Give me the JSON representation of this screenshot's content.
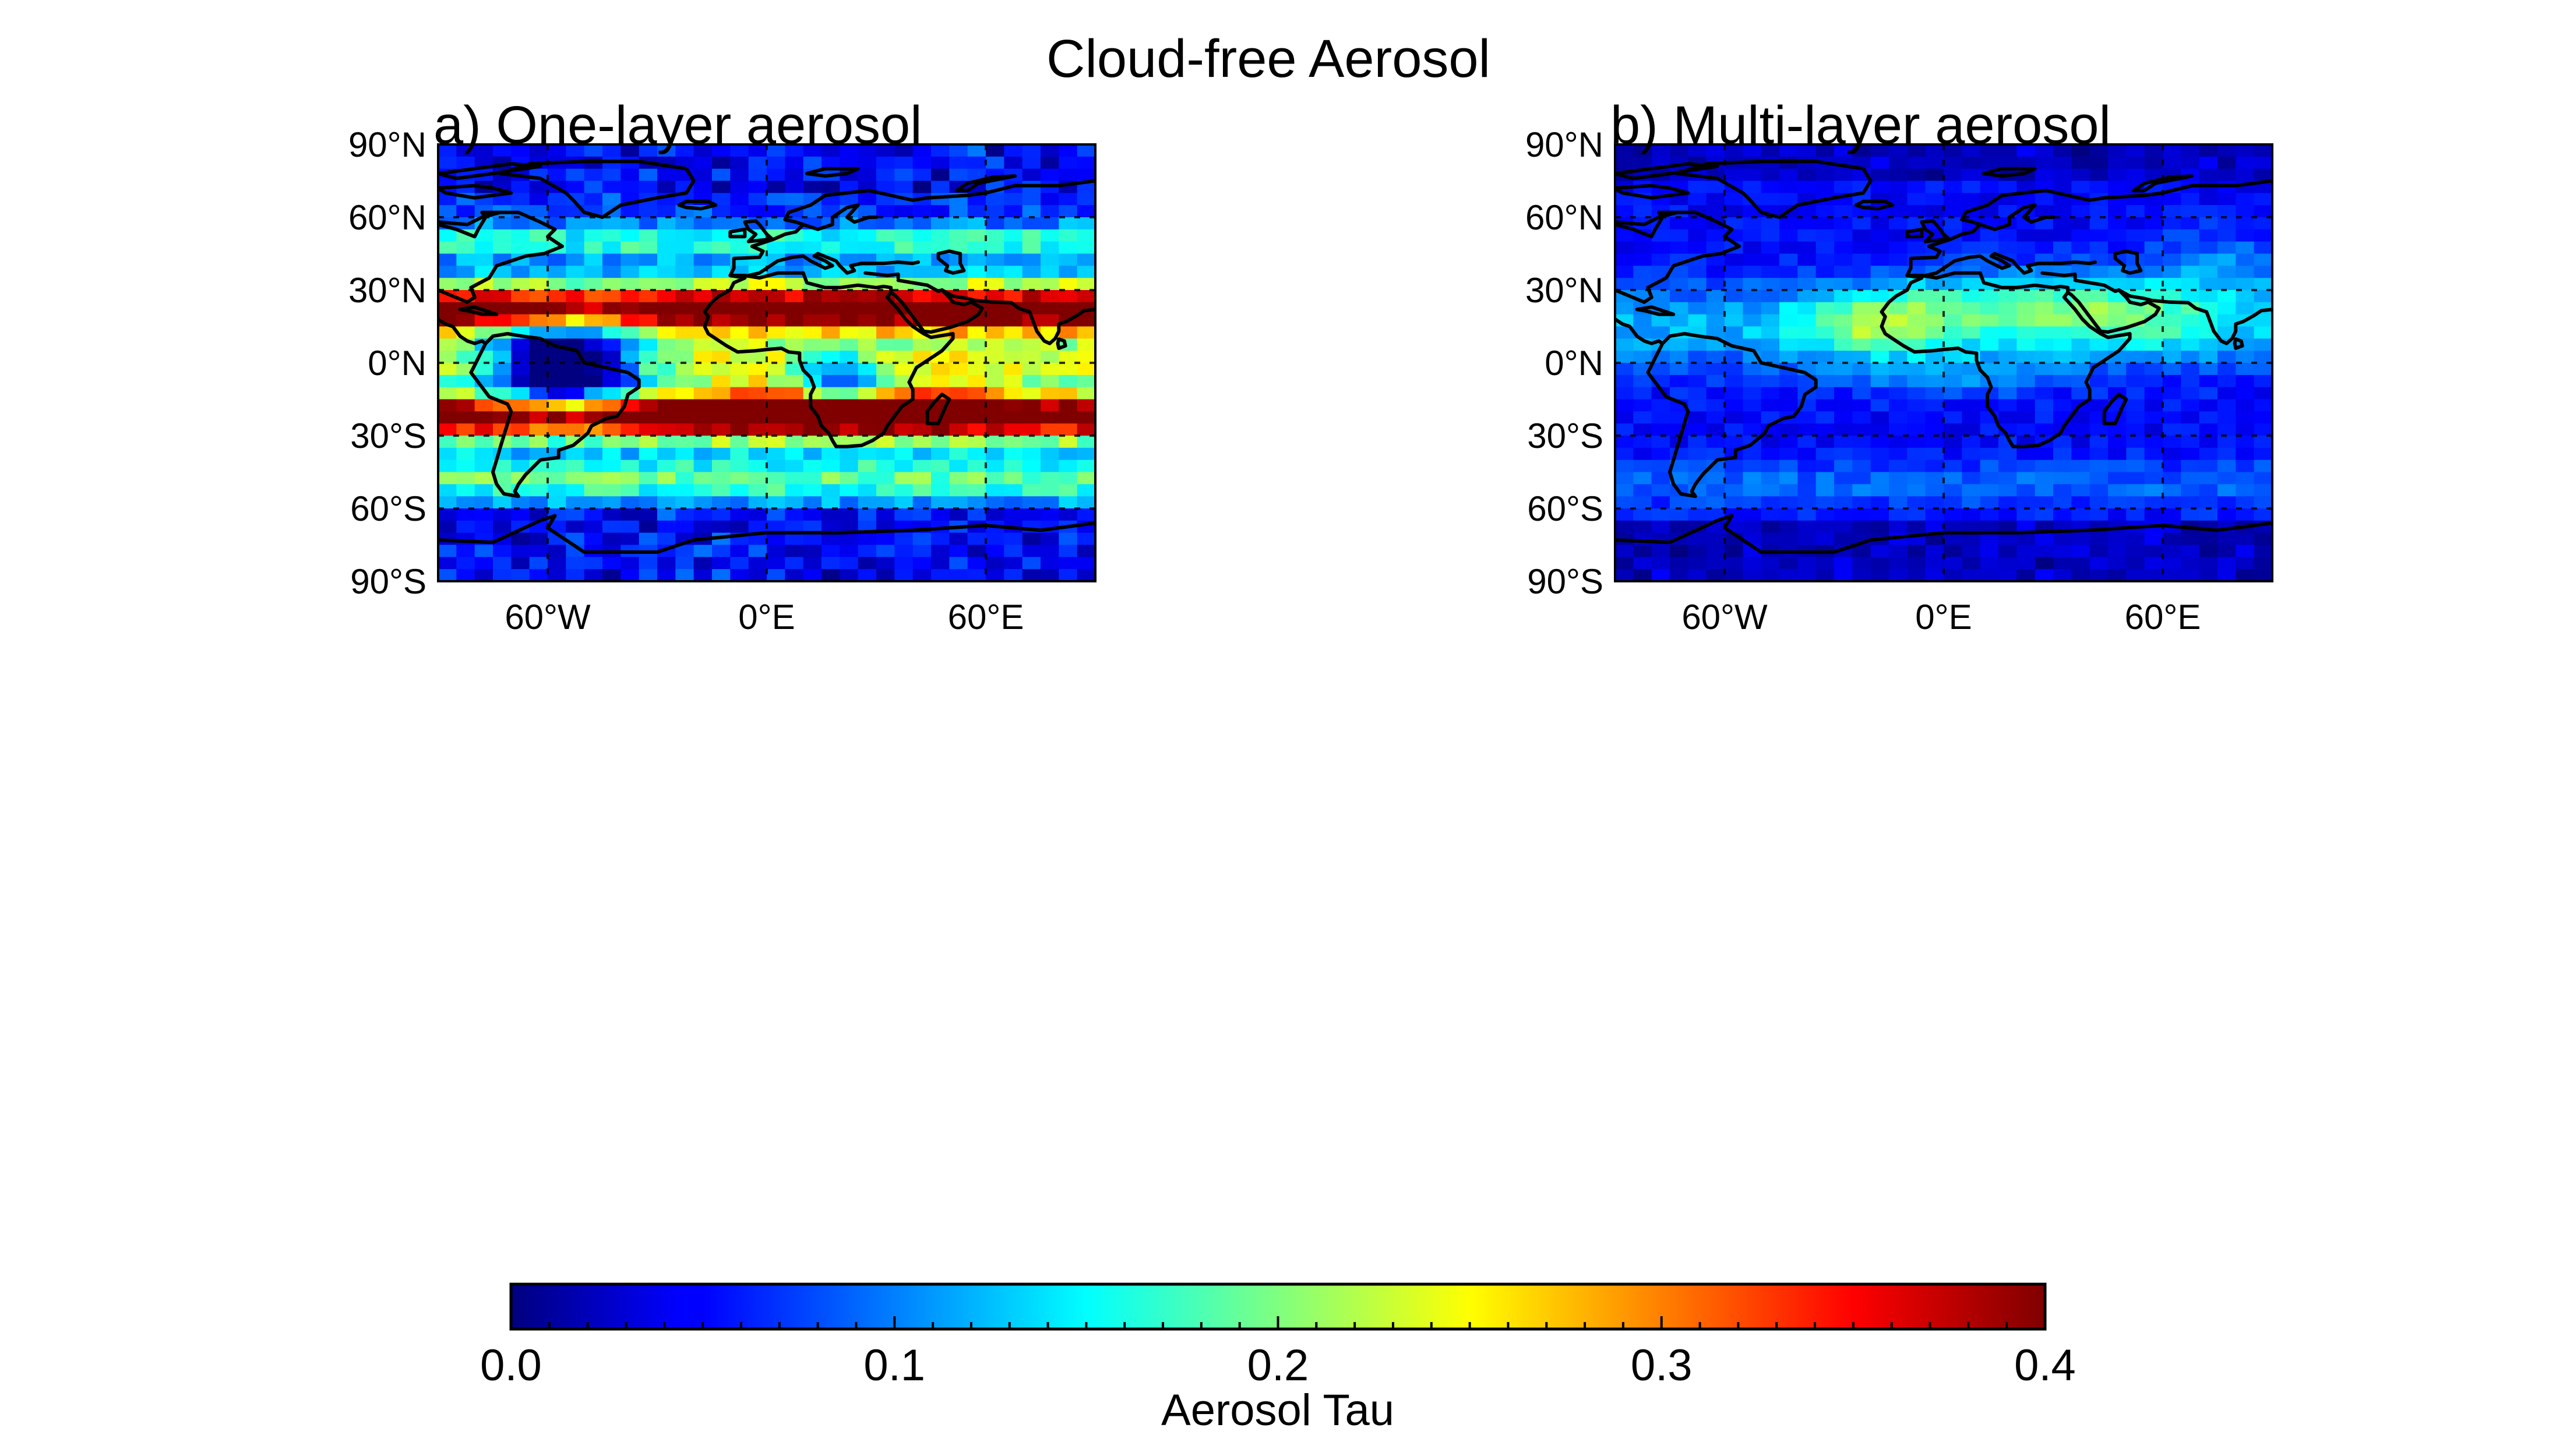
{
  "figure": {
    "title": "Cloud-free Aerosol"
  },
  "chart_data": {
    "type": "heatmap",
    "panels": [
      {
        "title": "a) One-layer aerosol",
        "lat_ticks": [
          "90°N",
          "60°N",
          "30°N",
          "0°N",
          "30°S",
          "60°S",
          "90°S"
        ],
        "lon_ticks": [
          "60°W",
          "0°E",
          "60°E"
        ],
        "lon_range": [
          -90,
          90
        ],
        "lat_range": [
          -90,
          90
        ],
        "pattern": "one-layer",
        "description_values": {
          "max_tau": 0.4,
          "min_tau": 0.0
        }
      },
      {
        "title": "b) Multi-layer aerosol",
        "lat_ticks": [
          "90°N",
          "60°N",
          "30°N",
          "0°N",
          "30°S",
          "60°S",
          "90°S"
        ],
        "lon_ticks": [
          "60°W",
          "0°E",
          "60°E"
        ],
        "lon_range": [
          -90,
          90
        ],
        "lat_range": [
          -90,
          90
        ],
        "pattern": "multi-layer",
        "description_values": {
          "max_tau": 0.2,
          "min_tau": 0.0
        }
      }
    ],
    "colorbar": {
      "label": "Aerosol Tau",
      "range": [
        0.0,
        0.4
      ],
      "ticks": [
        "0.0",
        "0.1",
        "0.2",
        "0.3",
        "0.4"
      ],
      "colormap": "jet"
    }
  }
}
